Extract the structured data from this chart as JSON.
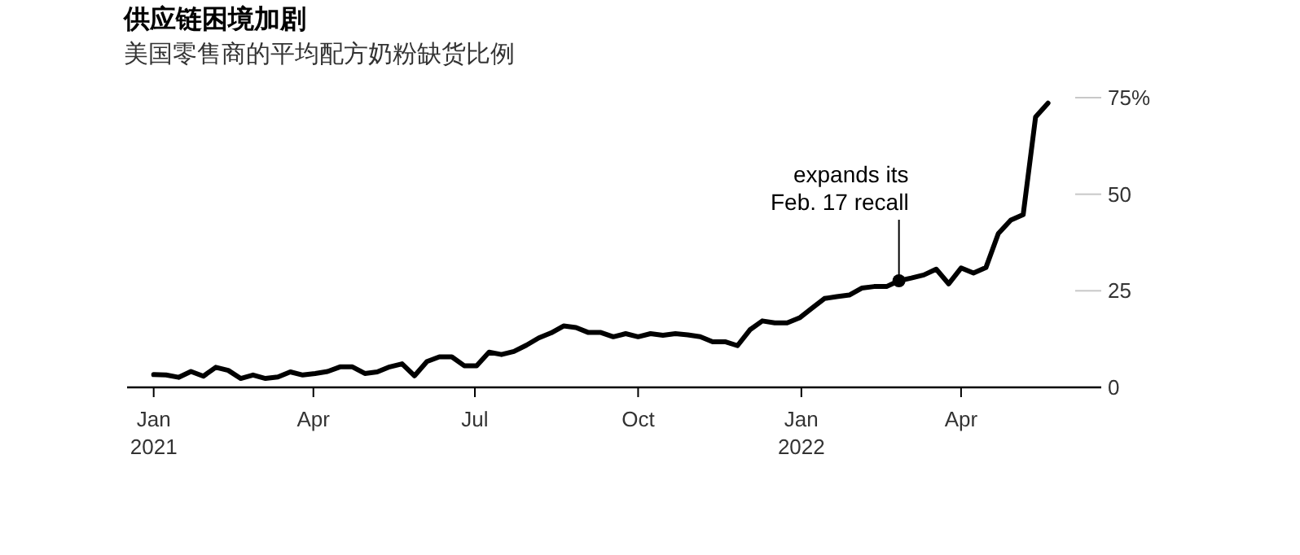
{
  "chart_data": {
    "type": "line",
    "title": "供应链困境加剧",
    "subtitle": "美国零售商的平均配方奶粉缺货比例",
    "x": [
      "2021-01-01",
      "2021-01-08",
      "2021-01-15",
      "2021-01-22",
      "2021-01-29",
      "2021-02-05",
      "2021-02-12",
      "2021-02-19",
      "2021-02-26",
      "2021-03-05",
      "2021-03-12",
      "2021-03-19",
      "2021-03-26",
      "2021-04-02",
      "2021-04-09",
      "2021-04-16",
      "2021-04-23",
      "2021-04-30",
      "2021-05-07",
      "2021-05-14",
      "2021-05-21",
      "2021-05-28",
      "2021-06-04",
      "2021-06-11",
      "2021-06-18",
      "2021-06-25",
      "2021-07-02",
      "2021-07-09",
      "2021-07-16",
      "2021-07-23",
      "2021-07-30",
      "2021-08-06",
      "2021-08-13",
      "2021-08-20",
      "2021-08-27",
      "2021-09-03",
      "2021-09-10",
      "2021-09-17",
      "2021-09-24",
      "2021-10-01",
      "2021-10-08",
      "2021-10-15",
      "2021-10-22",
      "2021-10-29",
      "2021-11-05",
      "2021-11-12",
      "2021-11-19",
      "2021-11-26",
      "2021-12-03",
      "2021-12-10",
      "2021-12-17",
      "2021-12-24",
      "2021-12-31",
      "2022-01-07",
      "2022-01-14",
      "2022-01-21",
      "2022-01-28",
      "2022-02-04",
      "2022-02-11",
      "2022-02-18",
      "2022-02-25",
      "2022-03-04",
      "2022-03-11",
      "2022-03-18",
      "2022-03-25",
      "2022-04-01",
      "2022-04-08",
      "2022-04-15",
      "2022-04-22",
      "2022-04-29",
      "2022-05-06",
      "2022-05-13",
      "2022-05-20"
    ],
    "series": [
      {
        "color": "#000000",
        "values": [
          3.3,
          3.2,
          2.6,
          4.1,
          2.9,
          5.2,
          4.4,
          2.3,
          3.2,
          2.3,
          2.7,
          4,
          3.2,
          3.6,
          4.1,
          5.3,
          5.3,
          3.6,
          4,
          5.3,
          6.1,
          3,
          6.7,
          7.9,
          7.9,
          5.6,
          5.6,
          9.1,
          8.5,
          9.3,
          10.9,
          12.8,
          14.1,
          15.9,
          15.5,
          14.2,
          14.2,
          13.1,
          13.9,
          13.1,
          13.9,
          13.5,
          13.9,
          13.6,
          13.1,
          11.8,
          11.8,
          10.8,
          14.9,
          17.2,
          16.7,
          16.7,
          18,
          20.5,
          23,
          23.5,
          23.9,
          25.7,
          26.1,
          26.1,
          27.6,
          28.3,
          29.1,
          30.6,
          26.8,
          30.9,
          29.6,
          31,
          39.8,
          43.3,
          44.7,
          70,
          73.6
        ]
      }
    ],
    "annotations": [
      {
        "text": "expands its\nFeb. 17 recall",
        "x": "2022-02-25",
        "y": 27.6
      }
    ],
    "xlim": [
      "2020-12-17",
      "2022-06-19"
    ],
    "xticks": [
      {
        "value": "2021-01-01",
        "label": "Jan\n2021"
      },
      {
        "value": "2021-04-01",
        "label": "Apr"
      },
      {
        "value": "2021-07-01",
        "label": "Jul"
      },
      {
        "value": "2021-10-01",
        "label": "Oct"
      },
      {
        "value": "2022-01-01",
        "label": "Jan\n2022"
      },
      {
        "value": "2022-04-01",
        "label": "Apr"
      }
    ],
    "ylim": [
      0,
      75
    ],
    "yticks": [
      0,
      25,
      50,
      {
        "value": 75,
        "label": "75%"
      }
    ],
    "marker": "none",
    "line_style": "solid"
  }
}
